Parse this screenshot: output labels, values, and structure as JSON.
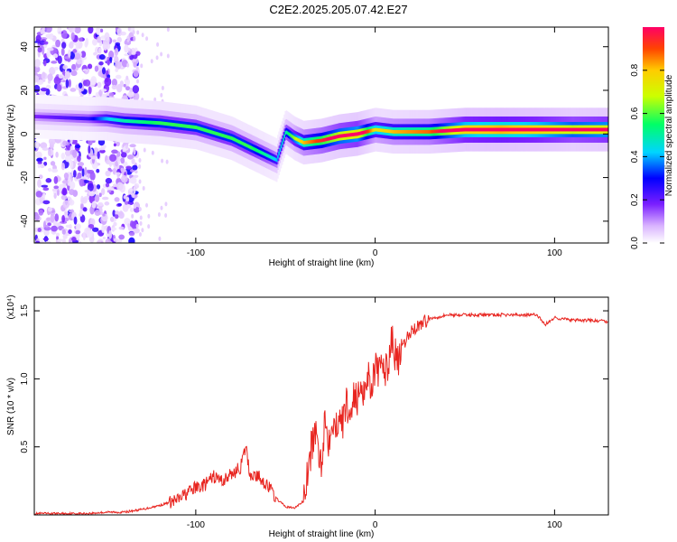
{
  "title": "C2E2.2025.205.07.42.E27",
  "chart_data": [
    {
      "type": "heatmap",
      "xlabel": "Height of straight line (km)",
      "ylabel": "Frequency (Hz)",
      "xlim": [
        -190,
        130
      ],
      "ylim": [
        -50,
        49
      ],
      "xticks": [
        -100,
        0,
        100
      ],
      "xtick_labels": [
        "-100",
        "0",
        "100"
      ],
      "yticks": [
        -40,
        -20,
        0,
        20,
        40
      ],
      "ytick_labels": [
        "-40",
        "-20",
        "0",
        "20",
        "40"
      ],
      "colorbar": {
        "label": "Normalized spectral amplitude",
        "range": [
          0,
          1
        ],
        "ticks": [
          0,
          0.2,
          0.4,
          0.6,
          0.8
        ],
        "tick_labels": [
          "0.0",
          "0.2",
          "0.4",
          "0.6",
          "0.8"
        ],
        "colors": [
          "#ffffff",
          "#d9b3ff",
          "#7a1fff",
          "#0000ff",
          "#00d5ff",
          "#00ff66",
          "#ccff00",
          "#ffcc00",
          "#ff4400",
          "#ff0066"
        ]
      },
      "ridge": {
        "x": [
          -190,
          -160,
          -150,
          -140,
          -120,
          -100,
          -80,
          -70,
          -60,
          -55,
          -50,
          -45,
          -40,
          -30,
          -20,
          -10,
          0,
          10,
          30,
          50,
          70,
          90,
          110,
          130
        ],
        "freq": [
          8,
          7,
          7,
          6,
          5,
          3,
          -2,
          -6,
          -10,
          -12,
          1,
          -2,
          -4,
          -3,
          -1,
          0,
          2,
          1,
          1,
          2,
          2,
          2,
          2,
          2
        ],
        "amplitude": [
          0.15,
          0.2,
          0.3,
          0.35,
          0.4,
          0.4,
          0.4,
          0.4,
          0.35,
          0.3,
          0.35,
          0.45,
          0.55,
          0.65,
          0.75,
          0.8,
          0.5,
          0.55,
          0.6,
          0.85,
          0.9,
          0.85,
          0.75,
          0.8
        ]
      },
      "noise_region_x": [
        -190,
        -140
      ]
    },
    {
      "type": "line",
      "xlabel": "Height of straight line (km)",
      "ylabel": "SNR (10 * v/v)",
      "yscale_note": "(x10⁴)",
      "xlim": [
        -190,
        130
      ],
      "ylim": [
        0,
        1.6
      ],
      "xticks": [
        -100,
        0,
        100
      ],
      "xtick_labels": [
        "-100",
        "0",
        "100"
      ],
      "yticks": [
        0.5,
        1.0,
        1.5
      ],
      "ytick_labels": [
        "0.5",
        "1.0",
        "1.5"
      ],
      "line_color": "#e8241f",
      "series": [
        {
          "x": [
            -190,
            -170,
            -160,
            -150,
            -140,
            -130,
            -120,
            -110,
            -105,
            -100,
            -95,
            -90,
            -85,
            -80,
            -75,
            -72,
            -70,
            -65,
            -60,
            -55,
            -50,
            -45,
            -40,
            -38,
            -36,
            -34,
            -32,
            -30,
            -28,
            -26,
            -24,
            -22,
            -20,
            -18,
            -16,
            -14,
            -12,
            -10,
            -8,
            -6,
            -4,
            -2,
            0,
            2,
            4,
            6,
            8,
            10,
            12,
            14,
            16,
            18,
            20,
            25,
            30,
            40,
            50,
            60,
            70,
            80,
            90,
            95,
            100,
            110,
            120,
            130
          ],
          "values": [
            0.01,
            0.01,
            0.01,
            0.02,
            0.02,
            0.04,
            0.07,
            0.11,
            0.16,
            0.2,
            0.22,
            0.28,
            0.25,
            0.3,
            0.35,
            0.5,
            0.3,
            0.28,
            0.22,
            0.12,
            0.06,
            0.05,
            0.1,
            0.25,
            0.45,
            0.6,
            0.5,
            0.4,
            0.7,
            0.55,
            0.75,
            0.6,
            0.8,
            0.65,
            0.85,
            0.7,
            0.92,
            0.8,
            1.0,
            0.9,
            1.05,
            0.95,
            1.1,
            1.0,
            1.15,
            1.05,
            1.2,
            1.3,
            1.1,
            1.15,
            1.25,
            1.3,
            1.35,
            1.4,
            1.44,
            1.47,
            1.47,
            1.47,
            1.47,
            1.47,
            1.47,
            1.4,
            1.45,
            1.43,
            1.43,
            1.42
          ]
        }
      ]
    }
  ]
}
